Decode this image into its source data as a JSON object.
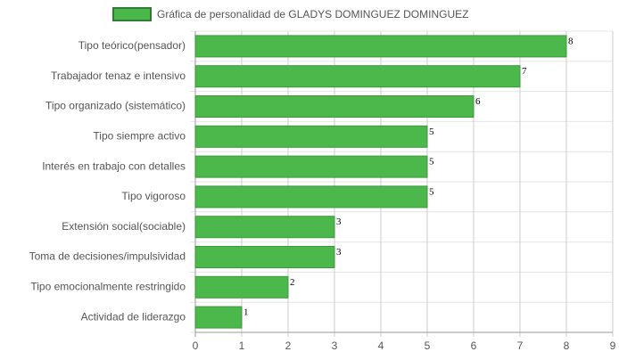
{
  "chart_data": {
    "type": "bar",
    "orientation": "horizontal",
    "categories": [
      "Tipo teórico(pensador)",
      "Trabajador tenaz e intensivo",
      "Tipo organizado (sistemático)",
      "Tipo siempre activo",
      "Interés en trabajo con detalles",
      "Tipo vigoroso",
      "Extensión social(sociable)",
      "Toma de decisiones/impulsividad",
      "Tipo emocionalmente restringido",
      "Actividad de liderazgo"
    ],
    "series": [
      {
        "name": "Gráfica de personalidad de GLADYS DOMINGUEZ DOMINGUEZ",
        "color": "#4cb84c",
        "values": [
          8,
          7,
          6,
          5,
          5,
          5,
          3,
          3,
          2,
          1
        ]
      }
    ],
    "xlim": [
      0,
      9
    ],
    "xticks": [
      0,
      1,
      2,
      3,
      4,
      5,
      6,
      7,
      8,
      9
    ],
    "grid": true,
    "legend": "top"
  }
}
